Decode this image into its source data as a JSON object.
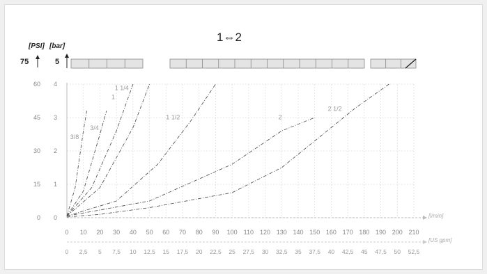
{
  "chart_data": {
    "type": "line",
    "title": "1⇔2",
    "top_scale": {
      "psi_label": "75",
      "bar_label": "5"
    },
    "y_units": {
      "psi": "[PSI]",
      "bar": "[bar]"
    },
    "y_ticks": [
      {
        "psi": "0",
        "bar": "0"
      },
      {
        "psi": "15",
        "bar": "1"
      },
      {
        "psi": "30",
        "bar": "2"
      },
      {
        "psi": "45",
        "bar": "3"
      },
      {
        "psi": "60",
        "bar": "4"
      }
    ],
    "x_ticks_lpm": [
      "0",
      "10",
      "20",
      "30",
      "40",
      "50",
      "60",
      "70",
      "80",
      "90",
      "100",
      "110",
      "120",
      "130",
      "140",
      "150",
      "160",
      "170",
      "180",
      "190",
      "200",
      "210"
    ],
    "x_ticks_gpm": [
      "0",
      "2,5",
      "5",
      "7,5",
      "10",
      "12,5",
      "15",
      "17,5",
      "20",
      "22,5",
      "25",
      "27,5",
      "30",
      "32,5",
      "35",
      "37,5",
      "40",
      "42,5",
      "45",
      "47,5",
      "50",
      "52,5"
    ],
    "x_label_lpm": "[l/min]",
    "x_label_gpm": "[US gpm]",
    "xlim": [
      0,
      210
    ],
    "ylim": [
      0,
      4
    ],
    "series": [
      {
        "name": "3/8",
        "label_at": [
          2,
          2.35
        ],
        "x": [
          0,
          5,
          10,
          12
        ],
        "y": [
          0.05,
          0.9,
          2.6,
          3.2
        ]
      },
      {
        "name": "3/4",
        "label_at": [
          14,
          2.62
        ],
        "x": [
          0,
          10,
          20,
          24
        ],
        "y": [
          0.05,
          0.8,
          2.5,
          3.2
        ]
      },
      {
        "name": "1",
        "label_at": [
          27,
          3.55
        ],
        "x": [
          0,
          15,
          30,
          40
        ],
        "y": [
          0.05,
          0.9,
          2.6,
          4.0
        ]
      },
      {
        "name": "1 1/4",
        "label_at": [
          29,
          3.82
        ],
        "x": [
          0,
          20,
          40,
          50
        ],
        "y": [
          0.05,
          0.9,
          2.7,
          4.0
        ]
      },
      {
        "name": "1 1/2",
        "label_at": [
          60,
          2.95
        ],
        "x": [
          0,
          30,
          55,
          75,
          90
        ],
        "y": [
          0.05,
          0.5,
          1.6,
          2.9,
          4.0
        ]
      },
      {
        "name": "2",
        "label_at": [
          128,
          2.95
        ],
        "x": [
          0,
          50,
          100,
          130,
          150
        ],
        "y": [
          0.05,
          0.5,
          1.6,
          2.6,
          3.0
        ]
      },
      {
        "name": "2 1/2",
        "label_at": [
          158,
          3.2
        ],
        "x": [
          0,
          20,
          50,
          100,
          130,
          155,
          175,
          195
        ],
        "y": [
          0.02,
          0.1,
          0.3,
          0.75,
          1.5,
          2.5,
          3.3,
          4.0
        ]
      }
    ]
  }
}
